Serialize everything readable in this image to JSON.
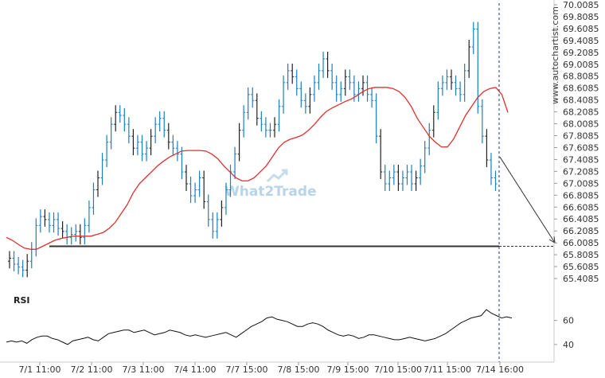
{
  "watermark": "What2Trade",
  "source_label": "www.autochartist.com",
  "colors": {
    "candle": "#1a7fc0",
    "candle_alt": "#222222",
    "moving_average": "#e03030",
    "level_line": "#333333",
    "projection": "#333333",
    "rsi_line": "#111111",
    "vertical_marker": "#1a3a6e",
    "grid": "#e8e8e8"
  },
  "chart_data": {
    "type": "line",
    "title": "",
    "xlabel": "",
    "ylabel": "",
    "x_tick_labels": [
      "7/1 11:00",
      "7/2 11:00",
      "7/3 11:00",
      "7/4 11:00",
      "7/7 15:00",
      "7/8 15:00",
      "7/9 15:00",
      "7/10 15:00",
      "7/11 15:00",
      "7/14 16:00"
    ],
    "y_tick_labels": [
      "70.0085",
      "69.8085",
      "69.6085",
      "69.4085",
      "69.2085",
      "69.0085",
      "68.8085",
      "68.6085",
      "68.4085",
      "68.2085",
      "68.0085",
      "67.8085",
      "67.6085",
      "67.4085",
      "67.2085",
      "67.0085",
      "66.8085",
      "66.6085",
      "66.4085",
      "66.2085",
      "66.0085",
      "65.8085",
      "65.6085",
      "65.4085"
    ],
    "ylim": [
      65.4085,
      70.0085
    ],
    "support_level": 65.95,
    "projection": {
      "from": 67.45,
      "to": 66.0085
    },
    "price_close": [
      65.75,
      65.65,
      65.6,
      65.55,
      65.7,
      65.9,
      66.3,
      66.45,
      66.4,
      66.3,
      66.4,
      66.25,
      66.2,
      66.1,
      66.15,
      66.2,
      66.1,
      66.3,
      66.6,
      66.9,
      67.1,
      67.4,
      67.7,
      68.0,
      68.2,
      68.15,
      68.0,
      67.8,
      67.6,
      67.7,
      67.5,
      67.6,
      67.8,
      68.0,
      68.1,
      67.9,
      67.7,
      67.6,
      67.5,
      67.2,
      67.0,
      66.8,
      66.9,
      67.1,
      66.7,
      66.4,
      66.2,
      66.4,
      66.6,
      66.9,
      67.2,
      67.5,
      67.9,
      68.2,
      68.5,
      68.4,
      68.1,
      68.0,
      67.9,
      67.9,
      68.0,
      68.3,
      68.7,
      68.9,
      68.8,
      68.6,
      68.4,
      68.3,
      68.5,
      68.7,
      68.9,
      69.1,
      68.9,
      68.7,
      68.5,
      68.6,
      68.8,
      68.7,
      68.5,
      68.6,
      68.7,
      68.5,
      68.4,
      67.8,
      67.2,
      67.0,
      67.1,
      67.2,
      67.0,
      67.1,
      67.2,
      67.0,
      67.1,
      67.3,
      67.6,
      67.9,
      68.2,
      68.6,
      68.7,
      68.8,
      68.7,
      68.6,
      68.5,
      68.9,
      69.3,
      69.6,
      68.3,
      67.8,
      67.4,
      67.1,
      67.0
    ],
    "moving_average": [
      66.1,
      66.05,
      65.98,
      65.92,
      65.9,
      65.9,
      65.95,
      66.0,
      66.05,
      66.08,
      66.1,
      66.12,
      66.12,
      66.12,
      66.12,
      66.15,
      66.18,
      66.25,
      66.35,
      66.5,
      66.65,
      66.85,
      67.0,
      67.1,
      67.2,
      67.3,
      67.38,
      67.45,
      67.5,
      67.55,
      67.56,
      67.56,
      67.56,
      67.55,
      67.5,
      67.42,
      67.3,
      67.2,
      67.1,
      67.05,
      67.05,
      67.1,
      67.2,
      67.3,
      67.45,
      67.6,
      67.7,
      67.75,
      67.78,
      67.82,
      67.9,
      68.0,
      68.12,
      68.22,
      68.28,
      68.33,
      68.38,
      68.42,
      68.48,
      68.55,
      68.6,
      68.62,
      68.62,
      68.62,
      68.6,
      68.55,
      68.45,
      68.3,
      68.1,
      67.95,
      67.8,
      67.7,
      67.62,
      67.62,
      67.75,
      67.95,
      68.15,
      68.3,
      68.45,
      68.55,
      68.6,
      68.62,
      68.5,
      68.2
    ],
    "rsi_y_tick_labels": [
      "60",
      "40"
    ],
    "rsi_ylim": [
      30,
      75
    ],
    "rsi": [
      42,
      43,
      42,
      43,
      41,
      44,
      46,
      47,
      47,
      45,
      44,
      42,
      40,
      43,
      44,
      45,
      46,
      44,
      43,
      46,
      49,
      50,
      51,
      52,
      52,
      50,
      51,
      52,
      50,
      48,
      49,
      50,
      52,
      51,
      50,
      48,
      47,
      48,
      47,
      46,
      47,
      48,
      49,
      50,
      48,
      46,
      49,
      52,
      55,
      57,
      59,
      62,
      63,
      61,
      60,
      59,
      57,
      55,
      55,
      57,
      58,
      57,
      55,
      52,
      50,
      48,
      47,
      48,
      47,
      45,
      46,
      48,
      48,
      47,
      46,
      45,
      44,
      44,
      45,
      46,
      45,
      44,
      43,
      44,
      45,
      47,
      49,
      52,
      55,
      58,
      60,
      62,
      63,
      64,
      69,
      66,
      64,
      62,
      63,
      62
    ]
  }
}
